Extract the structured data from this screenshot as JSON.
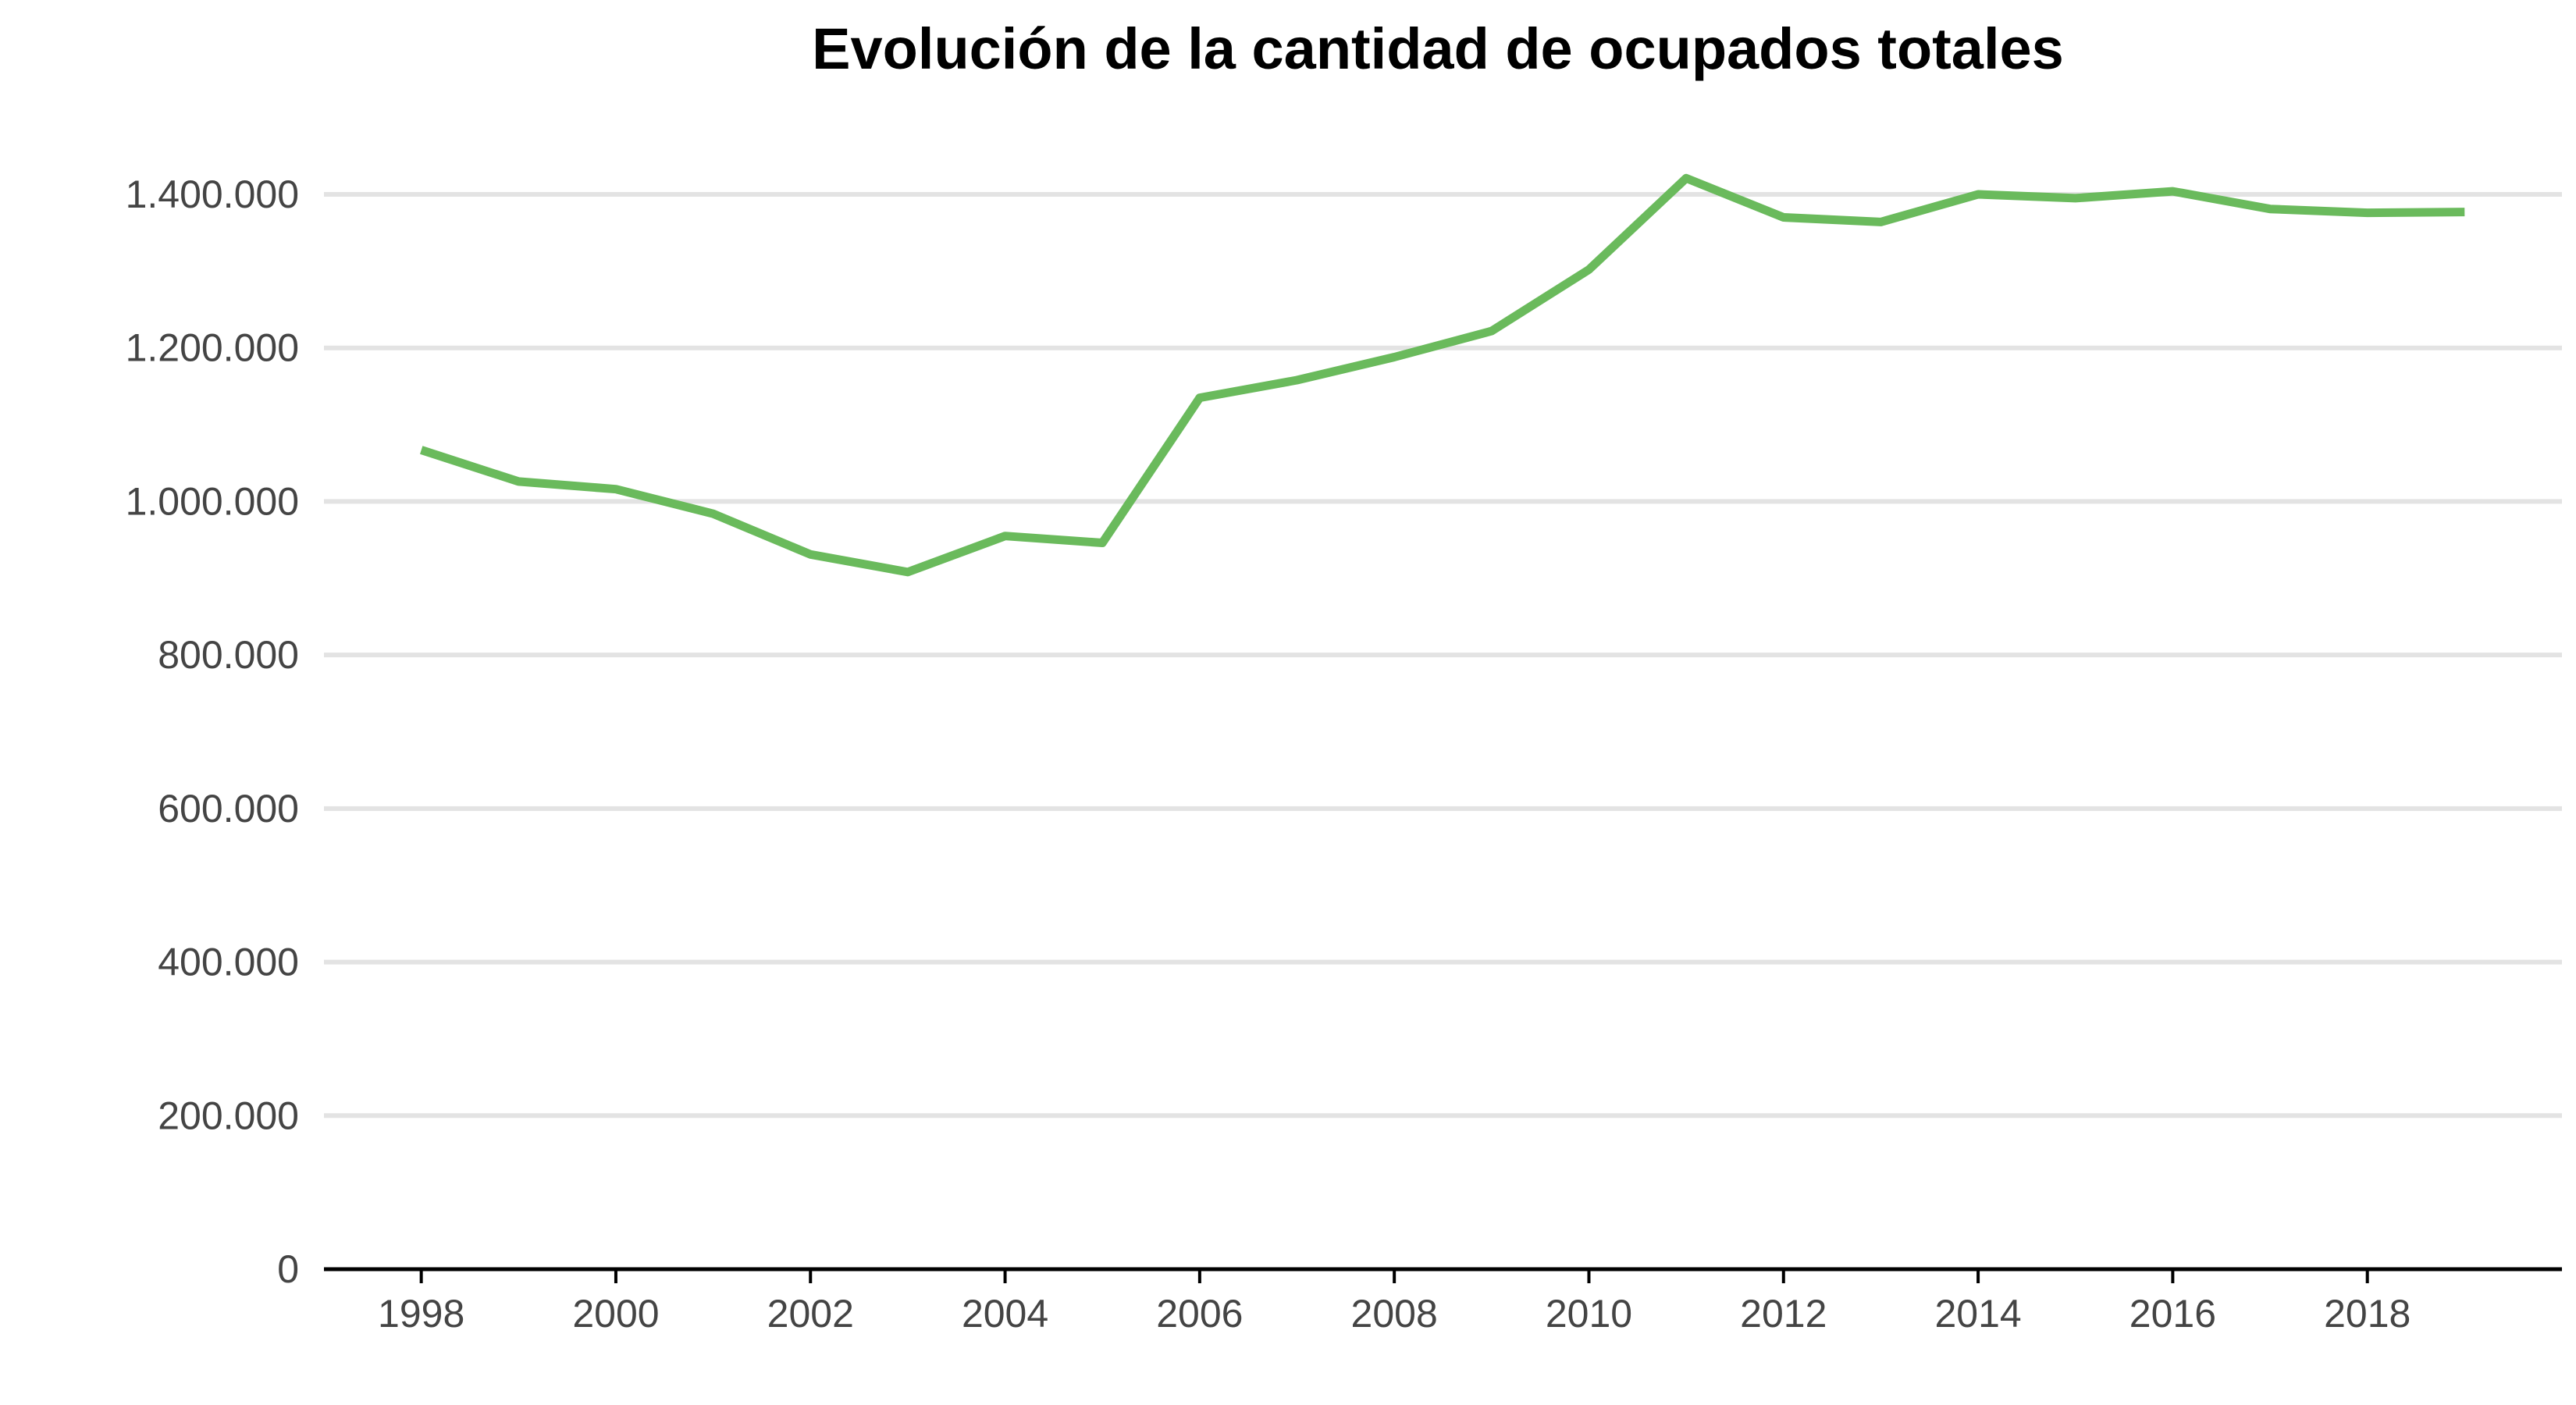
{
  "chart_data": {
    "type": "line",
    "title": "Evolución de la cantidad de ocupados totales",
    "xlabel": "",
    "ylabel": "",
    "x": [
      1998,
      1999,
      2000,
      2001,
      2002,
      2003,
      2004,
      2005,
      2006,
      2007,
      2008,
      2009,
      2010,
      2011,
      2012,
      2013,
      2014,
      2015,
      2016,
      2017,
      2018,
      2019
    ],
    "series": [
      {
        "values": [
          1067000,
          1026000,
          1016000,
          984000,
          931000,
          908000,
          955000,
          946000,
          1135000,
          1158000,
          1188000,
          1222000,
          1302000,
          1421000,
          1370000,
          1364000,
          1400000,
          1395000,
          1404000,
          1381000,
          1376000,
          1377000
        ],
        "color": "#6aba5c"
      }
    ],
    "xlim": [
      1997,
      2020
    ],
    "ylim": [
      0,
      1400000
    ],
    "x_ticks": [
      1998,
      2000,
      2002,
      2004,
      2006,
      2008,
      2010,
      2012,
      2014,
      2016,
      2018
    ],
    "x_tick_labels": [
      "1998",
      "2000",
      "2002",
      "2004",
      "2006",
      "2008",
      "2010",
      "2012",
      "2014",
      "2016",
      "2018"
    ],
    "y_ticks": [
      0,
      200000,
      400000,
      600000,
      800000,
      1000000,
      1200000,
      1400000
    ],
    "y_tick_labels": [
      "0",
      "200.000",
      "400.000",
      "600.000",
      "800.000",
      "1.000.000",
      "1.200.000",
      "1.400.000"
    ],
    "grid": true,
    "legend": "none"
  }
}
